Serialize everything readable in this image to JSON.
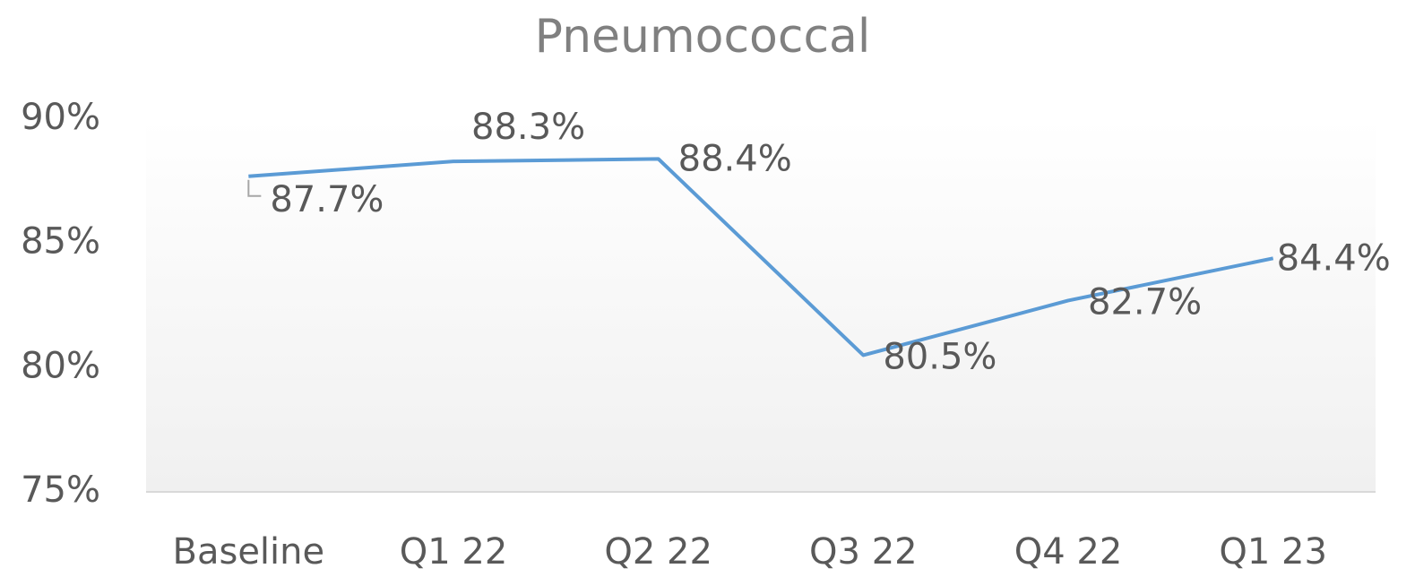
{
  "chart_data": {
    "type": "line",
    "title": "Pneumococcal",
    "categories": [
      "Baseline",
      "Q1 22",
      "Q2 22",
      "Q3 22",
      "Q4 22",
      "Q1 23"
    ],
    "series": [
      {
        "name": "Pneumococcal",
        "color": "#5b9bd5",
        "values": [
          87.7,
          88.3,
          88.4,
          80.5,
          82.7,
          84.4
        ],
        "value_labels": [
          "87.7%",
          "88.3%",
          "88.4%",
          "80.5%",
          "82.7%",
          "84.4%"
        ]
      }
    ],
    "ylim": [
      75,
      90
    ],
    "yticks": [
      {
        "value": 75,
        "label": "75%"
      },
      {
        "value": 80,
        "label": "80%"
      },
      {
        "value": 85,
        "label": "85%"
      },
      {
        "value": 90,
        "label": "90%"
      }
    ]
  }
}
